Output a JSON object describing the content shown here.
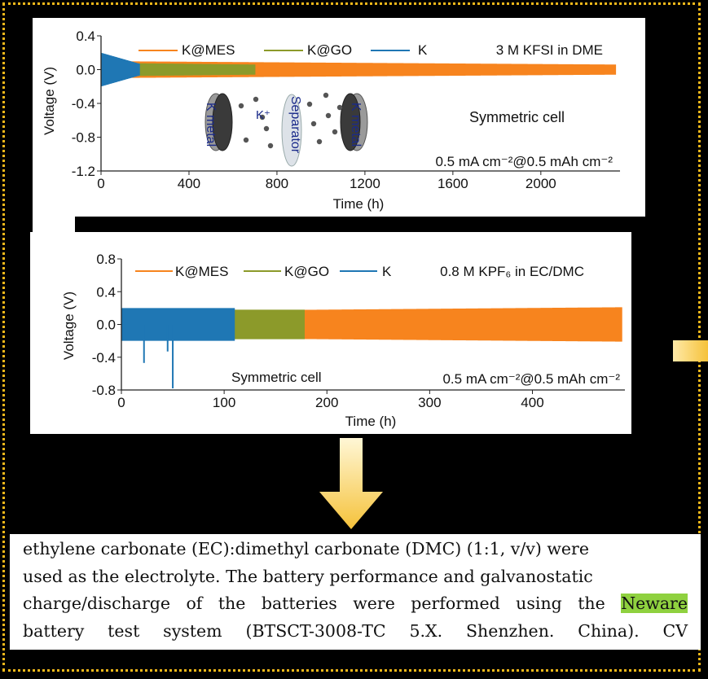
{
  "colors": {
    "K@MES": "#f7841e",
    "K@GO": "#8c9a2a",
    "K": "#1f77b4",
    "border": "#f2b81a",
    "highlight": "#8fd13f",
    "arrow": "#f5c23a"
  },
  "chart_data": [
    {
      "type": "line",
      "legend": [
        "K@MES",
        "K@GO",
        "K"
      ],
      "legend_position": "top",
      "annotation_electrolyte": "3 M KFSI in DME",
      "annotation_cell": "Symmetric cell",
      "annotation_rate": "0.5 mA cm⁻²@0.5 mAh cm⁻²",
      "xlabel": "Time (h)",
      "ylabel": "Voltage (V)",
      "xlim": [
        0,
        2360
      ],
      "ylim": [
        -1.2,
        0.4
      ],
      "xticks": [
        "0",
        "400",
        "800",
        "1200",
        "1600",
        "2000"
      ],
      "yticks": [
        "0.4",
        "0.0",
        "-0.4",
        "-0.8",
        "-1.2"
      ],
      "series": [
        {
          "name": "K@MES",
          "x": [
            0,
            2340
          ],
          "amplitude_v": [
            0.1,
            0.06
          ]
        },
        {
          "name": "K@GO",
          "x": [
            0,
            700
          ],
          "amplitude_v": [
            0.08,
            0.06
          ]
        },
        {
          "name": "K",
          "x": [
            0,
            175
          ],
          "amplitude_v": [
            0.2,
            0.07
          ]
        }
      ],
      "inset": {
        "electrode_left": "K metal",
        "separator": "Separator",
        "electrode_right": "K metal",
        "ion": "K⁺"
      }
    },
    {
      "type": "line",
      "legend": [
        "K@MES",
        "K@GO",
        "K"
      ],
      "legend_position": "top",
      "annotation_electrolyte": "0.8 M KPF₆ in EC/DMC",
      "annotation_cell": "Symmetric cell",
      "annotation_rate": "0.5 mA cm⁻²@0.5 mAh cm⁻²",
      "xlabel": "Time (h)",
      "ylabel": "Voltage (V)",
      "xlim": [
        0,
        490
      ],
      "ylim": [
        -0.8,
        0.8
      ],
      "xticks": [
        "0",
        "100",
        "200",
        "300",
        "400"
      ],
      "yticks": [
        "0.8",
        "0.4",
        "0.0",
        "-0.4",
        "-0.8"
      ],
      "series": [
        {
          "name": "K@MES",
          "x": [
            0,
            487
          ],
          "amplitude_v": [
            0.16,
            0.21
          ]
        },
        {
          "name": "K@GO",
          "x": [
            0,
            178
          ],
          "amplitude_v": [
            0.18,
            0.18
          ]
        },
        {
          "name": "K",
          "x": [
            0,
            110
          ],
          "amplitude_v": [
            0.2,
            0.2
          ],
          "spikes": [
            {
              "x": 22,
              "v": -0.47
            },
            {
              "x": 45,
              "v": -0.33
            },
            {
              "x": 50,
              "v": -0.78
            }
          ]
        }
      ]
    }
  ],
  "paragraph": {
    "l1": "ethylene carbonate (EC):dimethyl carbonate (DMC) (1:1, v/v) were",
    "l2": "used as the electrolyte. The battery performance and galvanostatic",
    "l3a": "charge/discharge of the batteries were performed using the",
    "l3b": "Neware",
    "l4": "battery test system (BTSCT-3008-TC 5.X. Shenzhen. China). CV"
  }
}
